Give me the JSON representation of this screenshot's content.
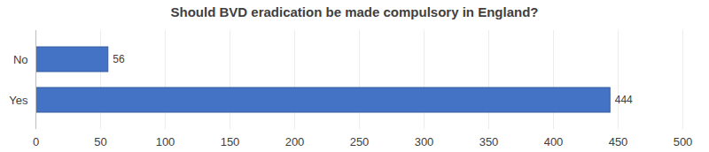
{
  "chart_data": {
    "type": "bar",
    "title": "Should BVD eradication be made compulsory in England?",
    "orientation": "horizontal",
    "categories": [
      "No",
      "Yes"
    ],
    "values": [
      56,
      444
    ],
    "color": "#4472c4",
    "xlim": [
      0,
      500
    ],
    "xticks": [
      0,
      50,
      100,
      150,
      200,
      250,
      300,
      350,
      400,
      450,
      500
    ],
    "grid": true,
    "data_labels": true
  }
}
